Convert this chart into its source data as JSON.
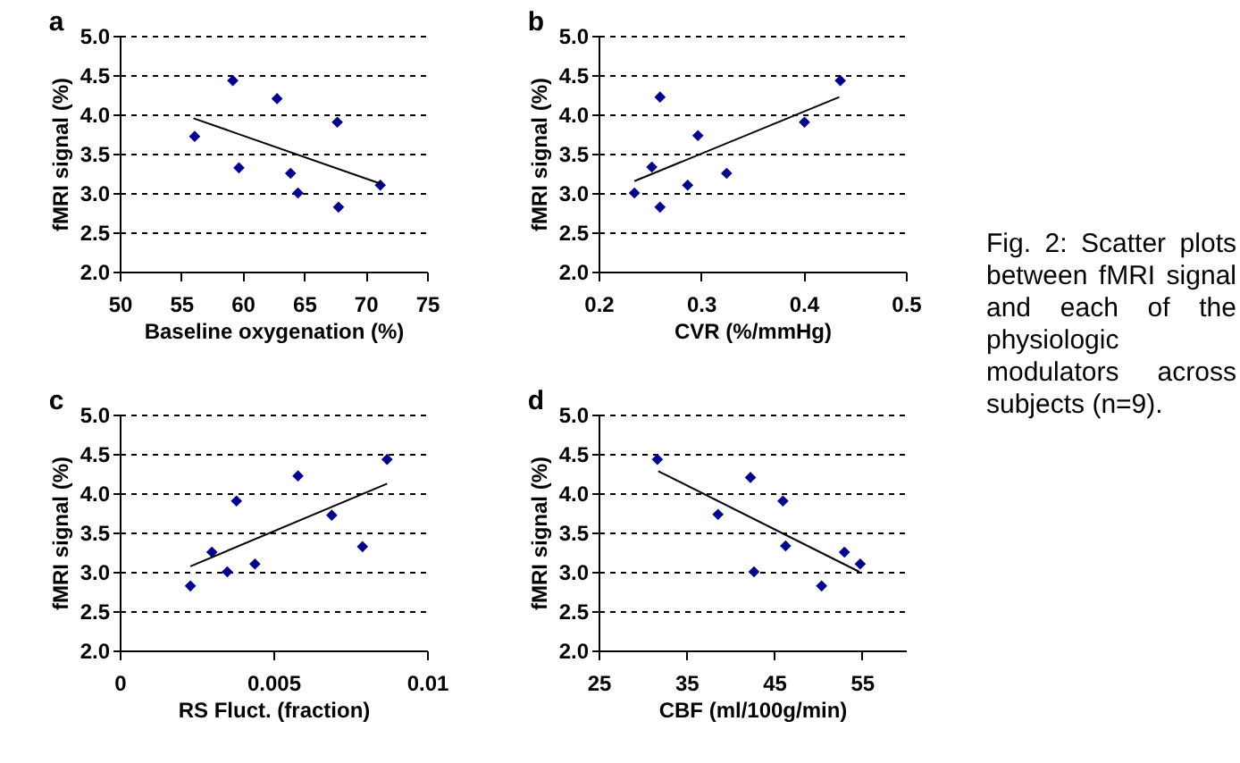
{
  "chart_data": [
    {
      "type": "scatter",
      "title": "a",
      "xlabel": "Baseline oxygenation (%)",
      "ylabel": "fMRI signal (%)",
      "xlim": [
        50,
        75
      ],
      "xticks": [
        50,
        55,
        60,
        65,
        70,
        75
      ],
      "ylim": [
        2,
        5
      ],
      "yticks": [
        {
          "value": 2,
          "label": "2.0"
        },
        {
          "value": 2.5,
          "label": "2.5"
        },
        {
          "value": 3,
          "label": "3.0"
        },
        {
          "value": 3.5,
          "label": "3.5"
        },
        {
          "value": 4,
          "label": "4.0"
        },
        {
          "value": 4.5,
          "label": "4.5"
        },
        {
          "value": 5,
          "label": "5.0"
        }
      ],
      "grid": "y",
      "marker": "diamond",
      "series": [
        {
          "color": "#00008b",
          "x": [
            59.2,
            62.8,
            67.7,
            56.1,
            59.7,
            63.9,
            64.5,
            67.8,
            71.2
          ],
          "values": [
            4.43,
            4.2,
            3.9,
            3.72,
            3.32,
            3.25,
            3.0,
            2.82,
            3.1
          ]
        },
        {
          "type": "line",
          "marker": "none",
          "color": "#000000",
          "x": [
            56,
            71.2
          ],
          "values": [
            3.95,
            3.12
          ]
        }
      ]
    },
    {
      "type": "scatter",
      "title": "b",
      "xlabel": "CVR (%/mmHg)",
      "ylabel": "fMRI signal (%)",
      "xlim": [
        0.2,
        0.5
      ],
      "xticks": [
        0.2,
        0.3,
        0.4,
        0.5
      ],
      "ylim": [
        2,
        5
      ],
      "yticks": [
        {
          "value": 2,
          "label": "2.0"
        },
        {
          "value": 2.5,
          "label": "2.5"
        },
        {
          "value": 3,
          "label": "3.0"
        },
        {
          "value": 3.5,
          "label": "3.5"
        },
        {
          "value": 4,
          "label": "4.0"
        },
        {
          "value": 4.5,
          "label": "4.5"
        },
        {
          "value": 5,
          "label": "5.0"
        }
      ],
      "grid": "y",
      "marker": "diamond",
      "series": [
        {
          "color": "#00008b",
          "x": [
            0.235,
            0.252,
            0.26,
            0.26,
            0.287,
            0.297,
            0.325,
            0.401,
            0.436
          ],
          "values": [
            3.0,
            3.33,
            4.22,
            2.82,
            3.1,
            3.73,
            3.25,
            3.9,
            4.43
          ]
        },
        {
          "type": "line",
          "marker": "none",
          "color": "#000000",
          "x": [
            0.235,
            0.435
          ],
          "values": [
            3.15,
            4.22
          ]
        }
      ]
    },
    {
      "type": "scatter",
      "title": "c",
      "xlabel": "RS Fluct. (fraction)",
      "ylabel": "fMRI signal (%)",
      "xlim": [
        0,
        0.01
      ],
      "xticks": [
        0,
        0.005,
        0.01
      ],
      "ylim": [
        2,
        5
      ],
      "yticks": [
        {
          "value": 2,
          "label": "2.0"
        },
        {
          "value": 2.5,
          "label": "2.5"
        },
        {
          "value": 3,
          "label": "3.0"
        },
        {
          "value": 3.5,
          "label": "3.5"
        },
        {
          "value": 4,
          "label": "4.0"
        },
        {
          "value": 4.5,
          "label": "4.5"
        },
        {
          "value": 5,
          "label": "5.0"
        }
      ],
      "grid": "y",
      "marker": "diamond",
      "series": [
        {
          "color": "#00008b",
          "x": [
            0.0023,
            0.003,
            0.0035,
            0.0038,
            0.0044,
            0.0058,
            0.0069,
            0.0079,
            0.0087
          ],
          "values": [
            2.82,
            3.25,
            3.0,
            3.9,
            3.1,
            4.22,
            3.72,
            3.32,
            4.43
          ]
        },
        {
          "type": "line",
          "marker": "none",
          "color": "#000000",
          "x": [
            0.0023,
            0.0087
          ],
          "values": [
            3.07,
            4.12
          ]
        }
      ]
    },
    {
      "type": "scatter",
      "title": "d",
      "xlabel": "CBF (ml/100g/min)",
      "ylabel": "fMRI signal (%)",
      "xlim": [
        25,
        60
      ],
      "xticks": [
        25,
        35,
        45,
        55
      ],
      "ylim": [
        2,
        5
      ],
      "yticks": [
        {
          "value": 2,
          "label": "2.0"
        },
        {
          "value": 2.5,
          "label": "2.5"
        },
        {
          "value": 3,
          "label": "3.0"
        },
        {
          "value": 3.5,
          "label": "3.5"
        },
        {
          "value": 4,
          "label": "4.0"
        },
        {
          "value": 4.5,
          "label": "4.5"
        },
        {
          "value": 5,
          "label": "5.0"
        }
      ],
      "grid": "y",
      "marker": "diamond",
      "series": [
        {
          "color": "#00008b",
          "x": [
            31.7,
            38.6,
            42.3,
            42.7,
            46.0,
            46.3,
            50.4,
            53.0,
            54.8
          ],
          "values": [
            4.43,
            3.73,
            4.2,
            3.0,
            3.9,
            3.33,
            2.82,
            3.25,
            3.1
          ]
        },
        {
          "type": "line",
          "marker": "none",
          "color": "#000000",
          "x": [
            31.8,
            54.7
          ],
          "values": [
            4.28,
            3.0
          ]
        }
      ]
    },
    {
      "type": "other",
      "annotations": [
        "Fig. 2: Scatter plots between fMRI signal and each of the physiologic modulators across subjects (n=9)."
      ]
    }
  ]
}
